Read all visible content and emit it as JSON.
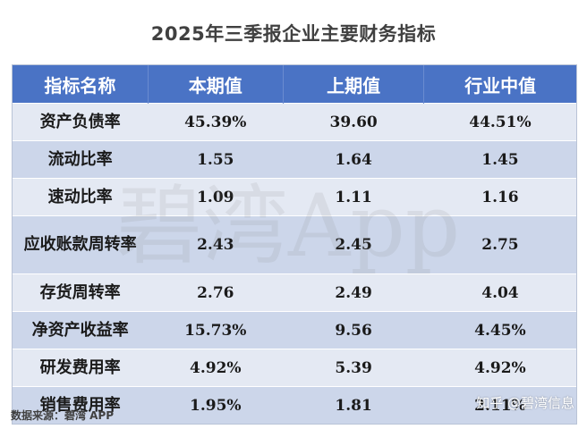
{
  "title": "2025年三季报企业主要财务指标",
  "headers": [
    "指标名称",
    "本期值",
    "上期值",
    "行业中值"
  ],
  "rows": [
    {
      "name": "资产负债率",
      "current": "45.39%",
      "previous": "39.60",
      "industry_median": "44.51%"
    },
    {
      "name": "流动比率",
      "current": "1.55",
      "previous": "1.64",
      "industry_median": "1.45"
    },
    {
      "name": "速动比率",
      "current": "1.09",
      "previous": "1.11",
      "industry_median": "1.16"
    },
    {
      "name": "应收账款周转率",
      "current": "2.43",
      "previous": "2.45",
      "industry_median": "2.75"
    },
    {
      "name": "存货周转率",
      "current": "2.76",
      "previous": "2.49",
      "industry_median": "4.04"
    },
    {
      "name": "净资产收益率",
      "current": "15.73%",
      "previous": "9.56",
      "industry_median": "4.45%"
    },
    {
      "name": "研发费用率",
      "current": "4.92%",
      "previous": "5.39",
      "industry_median": "4.92%"
    },
    {
      "name": "销售费用率",
      "current": "1.95%",
      "previous": "1.81",
      "industry_median": "2.11%"
    }
  ],
  "watermark": "碧湾App",
  "source": "数据来源：碧湾 APP",
  "credit": "知乎 @碧湾信息",
  "colors": {
    "header_bg": "#4a73c5",
    "row_light": "#e4e9f3",
    "row_dark": "#ccd6ea"
  }
}
